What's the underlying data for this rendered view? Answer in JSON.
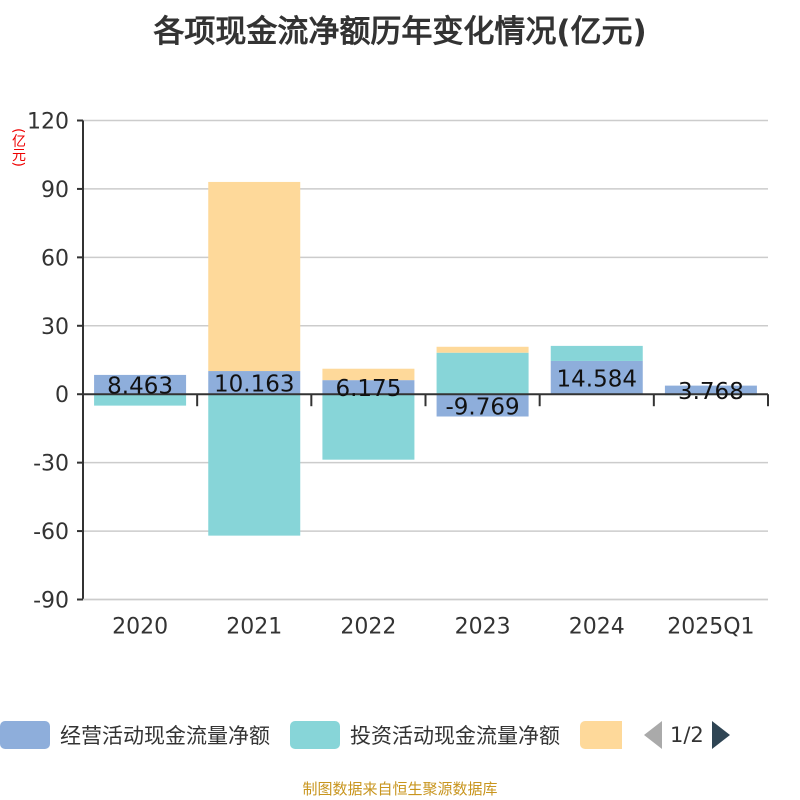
{
  "title": "各项现金流净额历年变化情况(亿元)",
  "source": "制图数据来自恒生聚源数据库",
  "legend_page": "1/2",
  "chart_data": {
    "type": "bar",
    "stacked": true,
    "title": "各项现金流净额历年变化情况(亿元)",
    "ylabel": "(亿元)",
    "ylim": [
      -90,
      120
    ],
    "yticks": [
      "120",
      "90",
      "60",
      "30",
      "0",
      "-30",
      "-60",
      "-90"
    ],
    "categories": [
      "2020",
      "2021",
      "2022",
      "2023",
      "2024",
      "2025Q1"
    ],
    "series": [
      {
        "name": "经营活动现金流量净额",
        "color": "#8eaedb",
        "values": [
          8.463,
          10.163,
          6.175,
          -9.769,
          14.584,
          3.768
        ],
        "labels": [
          "8.463",
          "10.163",
          "6.175",
          "-9.769",
          "14.584",
          "3.768"
        ]
      },
      {
        "name": "投资活动现金流量净额",
        "color": "#87d5d8",
        "values": [
          -5.0,
          -62.0,
          -28.7,
          18.2,
          6.6,
          -0.3
        ]
      },
      {
        "name": "",
        "color": "#fed99a",
        "values": [
          0,
          82.9,
          5.0,
          2.6,
          0,
          0
        ]
      }
    ],
    "grid": true,
    "legend": "bottom"
  }
}
